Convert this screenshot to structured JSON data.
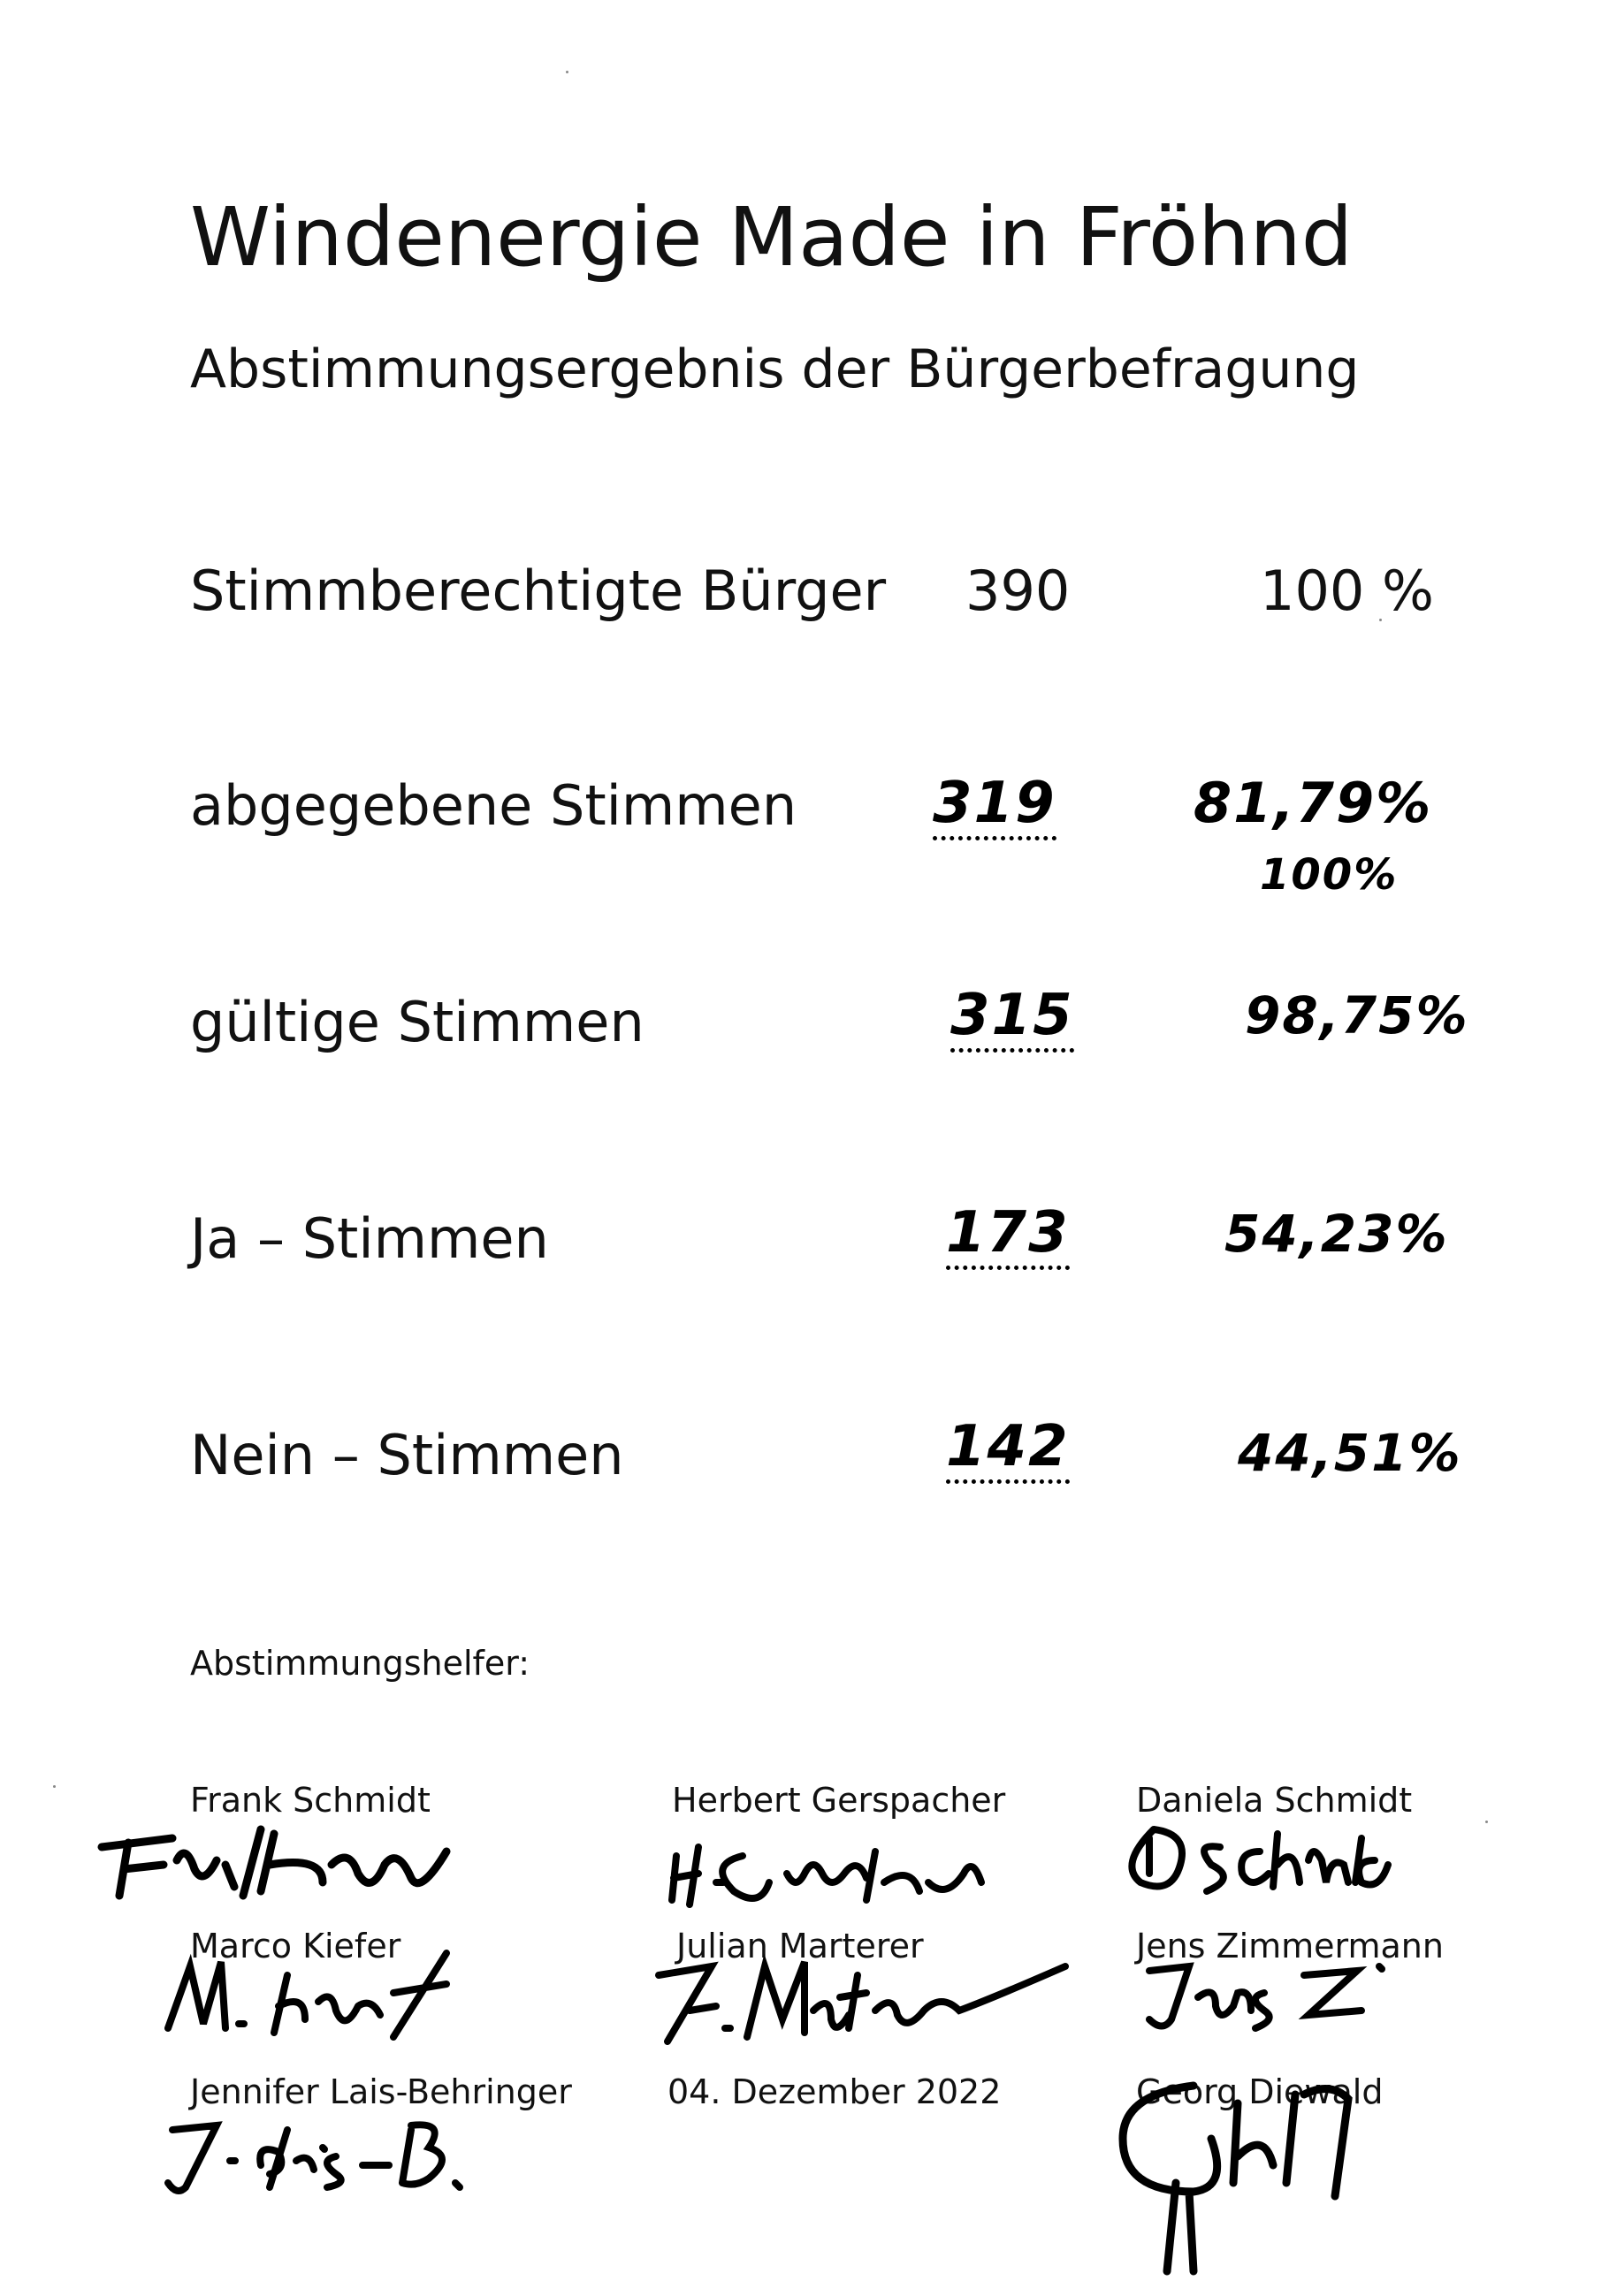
{
  "title": "Windenergie Made in Fröhnd",
  "subtitle": "Abstimmungsergebnis der Bürgerbefragung",
  "rows": [
    {
      "label": "Stimmberechtigte Bürger",
      "count": "390",
      "percent": "100 %"
    },
    {
      "label": "abgegebene Stimmen",
      "count": "319",
      "percent": "81,79%",
      "percent_extra": "100%"
    },
    {
      "label": "gültige Stimmen",
      "count": "315",
      "percent": "98,75%"
    },
    {
      "label": "Ja – Stimmen",
      "count": "173",
      "percent": "54,23%"
    },
    {
      "label": "Nein – Stimmen",
      "count": "142",
      "percent": "44,51%"
    }
  ],
  "helpers_title": "Abstimmungshelfer:",
  "helpers": [
    {
      "name": "Frank Schmidt"
    },
    {
      "name": "Herbert Gerspacher"
    },
    {
      "name": "Daniela Schmidt"
    },
    {
      "name": "Marco Kiefer"
    },
    {
      "name": "Julian Marterer"
    },
    {
      "name": "Jens Zimmermann"
    },
    {
      "name": "Jennifer Lais-Behringer"
    },
    {
      "name": "Georg Diewald"
    }
  ],
  "date": "04. Dezember 2022"
}
